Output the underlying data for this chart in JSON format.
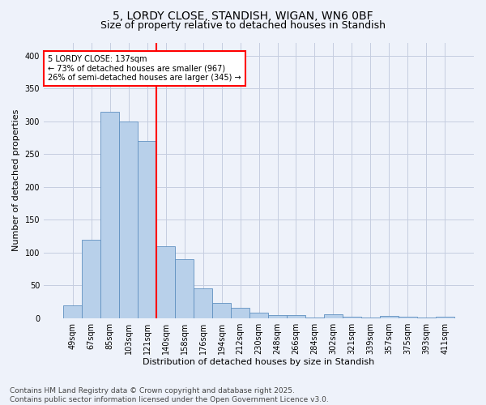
{
  "title_line1": "5, LORDY CLOSE, STANDISH, WIGAN, WN6 0BF",
  "title_line2": "Size of property relative to detached houses in Standish",
  "xlabel": "Distribution of detached houses by size in Standish",
  "ylabel": "Number of detached properties",
  "bar_labels": [
    "49sqm",
    "67sqm",
    "85sqm",
    "103sqm",
    "121sqm",
    "140sqm",
    "158sqm",
    "176sqm",
    "194sqm",
    "212sqm",
    "230sqm",
    "248sqm",
    "266sqm",
    "284sqm",
    "302sqm",
    "321sqm",
    "339sqm",
    "357sqm",
    "375sqm",
    "393sqm",
    "411sqm"
  ],
  "bar_values": [
    20,
    120,
    315,
    300,
    270,
    110,
    90,
    45,
    23,
    16,
    8,
    5,
    4,
    1,
    6,
    2,
    1,
    3,
    2,
    1,
    2
  ],
  "bar_color": "#b8d0ea",
  "bar_edge_color": "#6090c0",
  "vline_color": "red",
  "vline_pos": 4.5,
  "annotation_text": "5 LORDY CLOSE: 137sqm\n← 73% of detached houses are smaller (967)\n26% of semi-detached houses are larger (345) →",
  "annotation_box_color": "white",
  "annotation_box_edge_color": "red",
  "ylim": [
    0,
    420
  ],
  "yticks": [
    0,
    50,
    100,
    150,
    200,
    250,
    300,
    350,
    400
  ],
  "bg_color": "#eef2fa",
  "grid_color": "#c5cde0",
  "footnote": "Contains HM Land Registry data © Crown copyright and database right 2025.\nContains public sector information licensed under the Open Government Licence v3.0.",
  "title_fontsize": 10,
  "subtitle_fontsize": 9,
  "ylabel_fontsize": 8,
  "xlabel_fontsize": 8,
  "footnote_fontsize": 6.5,
  "tick_fontsize": 7,
  "annot_fontsize": 7
}
